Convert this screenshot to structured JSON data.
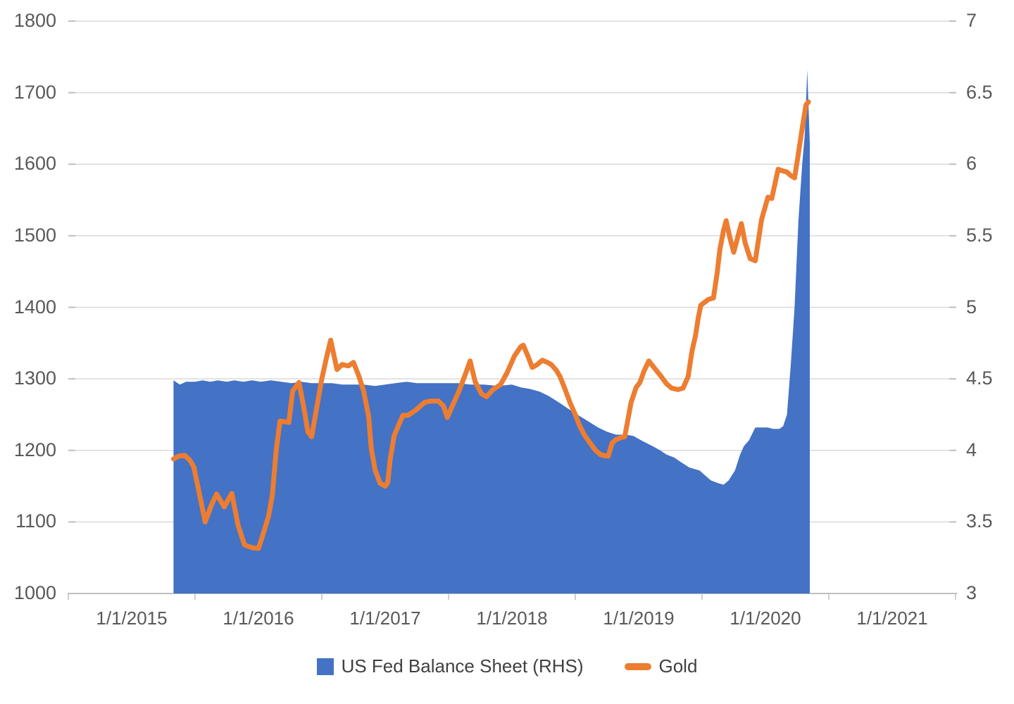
{
  "chart_data": {
    "type": "combo-area-line",
    "title": "",
    "x_axis": {
      "tick_labels": [
        "1/1/2015",
        "1/1/2016",
        "1/1/2017",
        "1/1/2018",
        "1/1/2019",
        "1/1/2020",
        "1/1/2021"
      ],
      "range_years": [
        0,
        7
      ],
      "note": "x unit = years after 1/1/2015 tick; year labels centered between tick marks"
    },
    "left_axis": {
      "min": 1000,
      "max": 1800,
      "step": 100,
      "tick_labels": [
        "1000",
        "1100",
        "1200",
        "1300",
        "1400",
        "1500",
        "1600",
        "1700",
        "1800"
      ],
      "series_on_axis": "Gold"
    },
    "right_axis": {
      "min": 3,
      "max": 7,
      "step": 0.5,
      "tick_labels": [
        "3",
        "3.5",
        "4",
        "4.5",
        "5",
        "5.5",
        "6",
        "6.5",
        "7"
      ],
      "series_on_axis": "US Fed Balance Sheet (RHS)"
    },
    "grid": {
      "horizontal": true,
      "vertical": false,
      "color": "#D9D9D9"
    },
    "legend": {
      "position": "bottom-center",
      "entries": [
        {
          "label": "US Fed Balance Sheet (RHS)",
          "swatch": "square",
          "color": "#4472C4"
        },
        {
          "label": "Gold",
          "swatch": "line",
          "color": "#ED7D31"
        }
      ]
    },
    "series": [
      {
        "name": "US Fed Balance Sheet (RHS)",
        "type": "area",
        "axis": "right",
        "color": "#4472C4",
        "points": [
          [
            0.83,
            4.49
          ],
          [
            0.88,
            4.46
          ],
          [
            0.93,
            4.48
          ],
          [
            1.0,
            4.48
          ],
          [
            1.06,
            4.49
          ],
          [
            1.12,
            4.48
          ],
          [
            1.18,
            4.49
          ],
          [
            1.25,
            4.48
          ],
          [
            1.31,
            4.49
          ],
          [
            1.38,
            4.48
          ],
          [
            1.45,
            4.49
          ],
          [
            1.52,
            4.48
          ],
          [
            1.6,
            4.49
          ],
          [
            1.68,
            4.48
          ],
          [
            1.76,
            4.47
          ],
          [
            1.84,
            4.48
          ],
          [
            1.92,
            4.47
          ],
          [
            2.0,
            4.47
          ],
          [
            2.08,
            4.47
          ],
          [
            2.16,
            4.46
          ],
          [
            2.25,
            4.46
          ],
          [
            2.33,
            4.46
          ],
          [
            2.42,
            4.45
          ],
          [
            2.5,
            4.46
          ],
          [
            2.58,
            4.47
          ],
          [
            2.67,
            4.48
          ],
          [
            2.75,
            4.47
          ],
          [
            2.83,
            4.47
          ],
          [
            2.92,
            4.47
          ],
          [
            3.0,
            4.47
          ],
          [
            3.08,
            4.47
          ],
          [
            3.17,
            4.46
          ],
          [
            3.28,
            4.46
          ],
          [
            3.39,
            4.45
          ],
          [
            3.5,
            4.46
          ],
          [
            3.57,
            4.44
          ],
          [
            3.64,
            4.43
          ],
          [
            3.72,
            4.41
          ],
          [
            3.79,
            4.38
          ],
          [
            3.88,
            4.33
          ],
          [
            3.98,
            4.27
          ],
          [
            4.09,
            4.21
          ],
          [
            4.18,
            4.16
          ],
          [
            4.25,
            4.13
          ],
          [
            4.32,
            4.11
          ],
          [
            4.4,
            4.11
          ],
          [
            4.46,
            4.1
          ],
          [
            4.52,
            4.07
          ],
          [
            4.61,
            4.03
          ],
          [
            4.67,
            4.0
          ],
          [
            4.72,
            3.97
          ],
          [
            4.78,
            3.95
          ],
          [
            4.83,
            3.92
          ],
          [
            4.9,
            3.88
          ],
          [
            4.98,
            3.86
          ],
          [
            5.03,
            3.82
          ],
          [
            5.07,
            3.79
          ],
          [
            5.13,
            3.77
          ],
          [
            5.17,
            3.76
          ],
          [
            5.21,
            3.79
          ],
          [
            5.26,
            3.86
          ],
          [
            5.3,
            3.97
          ],
          [
            5.33,
            4.03
          ],
          [
            5.37,
            4.07
          ],
          [
            5.42,
            4.16
          ],
          [
            5.47,
            4.16
          ],
          [
            5.52,
            4.16
          ],
          [
            5.56,
            4.15
          ],
          [
            5.61,
            4.15
          ],
          [
            5.64,
            4.17
          ],
          [
            5.67,
            4.25
          ],
          [
            5.7,
            4.6
          ],
          [
            5.73,
            5.0
          ],
          [
            5.76,
            5.6
          ],
          [
            5.79,
            6.0
          ],
          [
            5.81,
            6.2
          ],
          [
            5.83,
            6.66
          ],
          [
            5.85,
            6.15
          ]
        ]
      },
      {
        "name": "Gold",
        "type": "line",
        "axis": "left",
        "color": "#ED7D31",
        "stroke_width": 7,
        "points": [
          [
            0.83,
            1188
          ],
          [
            0.87,
            1192
          ],
          [
            0.92,
            1193
          ],
          [
            0.96,
            1186
          ],
          [
            0.99,
            1177
          ],
          [
            1.03,
            1143
          ],
          [
            1.08,
            1100
          ],
          [
            1.13,
            1124
          ],
          [
            1.17,
            1139
          ],
          [
            1.23,
            1121
          ],
          [
            1.29,
            1140
          ],
          [
            1.34,
            1095
          ],
          [
            1.39,
            1068
          ],
          [
            1.45,
            1064
          ],
          [
            1.5,
            1063
          ],
          [
            1.53,
            1079
          ],
          [
            1.58,
            1108
          ],
          [
            1.61,
            1138
          ],
          [
            1.64,
            1200
          ],
          [
            1.67,
            1241
          ],
          [
            1.71,
            1240
          ],
          [
            1.74,
            1239
          ],
          [
            1.77,
            1283
          ],
          [
            1.82,
            1295
          ],
          [
            1.86,
            1258
          ],
          [
            1.89,
            1226
          ],
          [
            1.92,
            1219
          ],
          [
            1.96,
            1260
          ],
          [
            2.0,
            1300
          ],
          [
            2.04,
            1332
          ],
          [
            2.07,
            1354
          ],
          [
            2.12,
            1313
          ],
          [
            2.16,
            1320
          ],
          [
            2.21,
            1318
          ],
          [
            2.25,
            1323
          ],
          [
            2.29,
            1305
          ],
          [
            2.33,
            1283
          ],
          [
            2.37,
            1247
          ],
          [
            2.39,
            1203
          ],
          [
            2.42,
            1173
          ],
          [
            2.46,
            1154
          ],
          [
            2.5,
            1150
          ],
          [
            2.52,
            1155
          ],
          [
            2.54,
            1188
          ],
          [
            2.57,
            1220
          ],
          [
            2.61,
            1237
          ],
          [
            2.64,
            1249
          ],
          [
            2.68,
            1249
          ],
          [
            2.74,
            1256
          ],
          [
            2.81,
            1267
          ],
          [
            2.86,
            1269
          ],
          [
            2.92,
            1269
          ],
          [
            2.96,
            1262
          ],
          [
            2.99,
            1246
          ],
          [
            3.04,
            1266
          ],
          [
            3.08,
            1282
          ],
          [
            3.13,
            1305
          ],
          [
            3.17,
            1325
          ],
          [
            3.21,
            1296
          ],
          [
            3.26,
            1279
          ],
          [
            3.3,
            1275
          ],
          [
            3.35,
            1285
          ],
          [
            3.41,
            1292
          ],
          [
            3.46,
            1308
          ],
          [
            3.52,
            1332
          ],
          [
            3.57,
            1345
          ],
          [
            3.59,
            1347
          ],
          [
            3.63,
            1330
          ],
          [
            3.66,
            1316
          ],
          [
            3.7,
            1320
          ],
          [
            3.74,
            1326
          ],
          [
            3.78,
            1323
          ],
          [
            3.81,
            1320
          ],
          [
            3.85,
            1312
          ],
          [
            3.88,
            1303
          ],
          [
            3.92,
            1285
          ],
          [
            3.96,
            1266
          ],
          [
            4.0,
            1250
          ],
          [
            4.03,
            1236
          ],
          [
            4.07,
            1222
          ],
          [
            4.11,
            1212
          ],
          [
            4.16,
            1200
          ],
          [
            4.2,
            1194
          ],
          [
            4.22,
            1193
          ],
          [
            4.26,
            1192
          ],
          [
            4.29,
            1210
          ],
          [
            4.32,
            1215
          ],
          [
            4.36,
            1218
          ],
          [
            4.39,
            1219
          ],
          [
            4.44,
            1267
          ],
          [
            4.48,
            1288
          ],
          [
            4.51,
            1295
          ],
          [
            4.54,
            1310
          ],
          [
            4.58,
            1325
          ],
          [
            4.62,
            1316
          ],
          [
            4.67,
            1305
          ],
          [
            4.72,
            1293
          ],
          [
            4.76,
            1287
          ],
          [
            4.81,
            1285
          ],
          [
            4.85,
            1287
          ],
          [
            4.89,
            1303
          ],
          [
            4.92,
            1338
          ],
          [
            4.95,
            1362
          ],
          [
            4.97,
            1385
          ],
          [
            4.99,
            1403
          ],
          [
            5.02,
            1407
          ],
          [
            5.05,
            1411
          ],
          [
            5.09,
            1413
          ],
          [
            5.12,
            1449
          ],
          [
            5.14,
            1480
          ],
          [
            5.17,
            1508
          ],
          [
            5.19,
            1521
          ],
          [
            5.22,
            1497
          ],
          [
            5.25,
            1477
          ],
          [
            5.28,
            1497
          ],
          [
            5.31,
            1517
          ],
          [
            5.34,
            1490
          ],
          [
            5.38,
            1468
          ],
          [
            5.42,
            1465
          ],
          [
            5.47,
            1523
          ],
          [
            5.52,
            1554
          ],
          [
            5.55,
            1552
          ],
          [
            5.6,
            1593
          ],
          [
            5.63,
            1591
          ],
          [
            5.67,
            1589
          ],
          [
            5.7,
            1584
          ],
          [
            5.73,
            1581
          ],
          [
            5.76,
            1615
          ],
          [
            5.79,
            1650
          ],
          [
            5.82,
            1683
          ],
          [
            5.84,
            1687
          ]
        ]
      }
    ],
    "colors": {
      "area_fill": "#4472C4",
      "line_stroke": "#ED7D31",
      "gridline": "#D9D9D9",
      "axis_line": "#BFBFBF",
      "axis_text": "#595959",
      "legend_text": "#404040",
      "background": "#FFFFFF"
    }
  }
}
